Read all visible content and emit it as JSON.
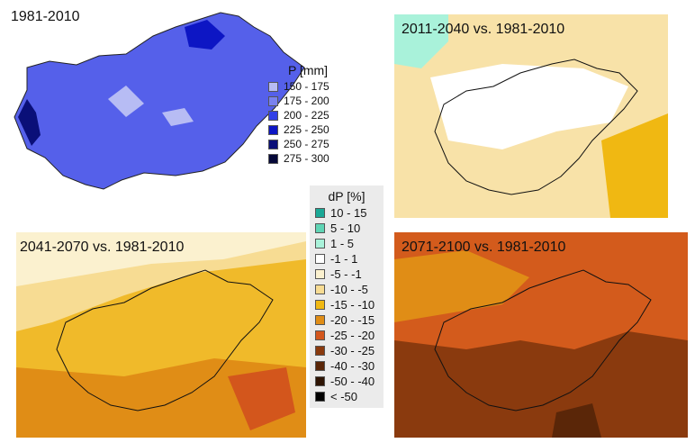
{
  "panels": [
    {
      "id": "baseline",
      "title": "1981-2010",
      "fill": "#5560ea"
    },
    {
      "id": "p1",
      "title": "2011-2040 vs. 1981-2010",
      "fill": "#f8e2a8"
    },
    {
      "id": "p2",
      "title": "2041-2070 vs. 1981-2010",
      "fill": "#f0ba2a"
    },
    {
      "id": "p3",
      "title": "2071-2100 vs. 1981-2010",
      "fill": "#d35b1c"
    }
  ],
  "legend_p": {
    "title": "P [mm]",
    "items": [
      {
        "label": "150 - 175",
        "color": "#b7bcf4"
      },
      {
        "label": "175 - 200",
        "color": "#7a82ef"
      },
      {
        "label": "200 - 225",
        "color": "#3240e6"
      },
      {
        "label": "225 - 250",
        "color": "#0d16c4"
      },
      {
        "label": "250 - 275",
        "color": "#0a0f78"
      },
      {
        "label": "275 - 300",
        "color": "#050838"
      }
    ]
  },
  "legend_dp": {
    "title": "dP [%]",
    "items": [
      {
        "label": "10 - 15",
        "color": "#1aa896"
      },
      {
        "label": "5 - 10",
        "color": "#5fd4b4"
      },
      {
        "label": "1 - 5",
        "color": "#a9f2da"
      },
      {
        "label": "-1 - 1",
        "color": "#ffffff"
      },
      {
        "label": "-5 - -1",
        "color": "#fbf1cf"
      },
      {
        "label": "-10 - -5",
        "color": "#f7dc93"
      },
      {
        "label": "-15 - -10",
        "color": "#f0b812"
      },
      {
        "label": "-20 - -15",
        "color": "#e08d16"
      },
      {
        "label": "-25 - -20",
        "color": "#d3561c"
      },
      {
        "label": "-30 - -25",
        "color": "#8a3a0e"
      },
      {
        "label": "-40 - -30",
        "color": "#5a2608"
      },
      {
        "label": "-50 - -40",
        "color": "#2e1404"
      },
      {
        "label": "< -50",
        "color": "#000000"
      }
    ]
  }
}
